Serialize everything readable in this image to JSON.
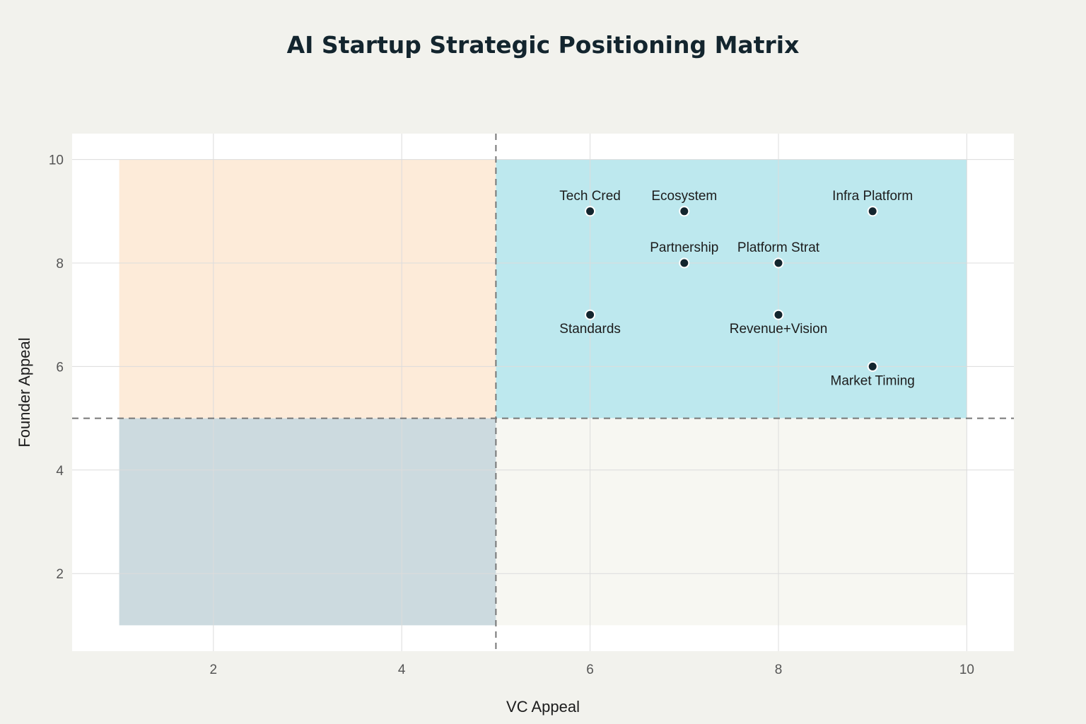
{
  "chart_data": {
    "type": "scatter",
    "title": "AI Startup Strategic Positioning Matrix",
    "xlabel": "VC Appeal",
    "ylabel": "Founder Appeal",
    "xlim": [
      0.5,
      10.5
    ],
    "ylim": [
      0.5,
      10.5
    ],
    "xticks": [
      2,
      4,
      6,
      8,
      10
    ],
    "yticks": [
      2,
      4,
      6,
      8,
      10
    ],
    "grid": true,
    "reference_lines": {
      "x": 5,
      "y": 5
    },
    "quadrants": [
      {
        "name": "top-left",
        "x": [
          1,
          5
        ],
        "y": [
          5,
          10
        ],
        "color": "#fdebd9"
      },
      {
        "name": "top-right",
        "x": [
          5,
          10
        ],
        "y": [
          5,
          10
        ],
        "color": "#bde8ee"
      },
      {
        "name": "bottom-left",
        "x": [
          1,
          5
        ],
        "y": [
          1,
          5
        ],
        "color": "#ccdadf"
      },
      {
        "name": "bottom-right",
        "x": [
          5,
          10
        ],
        "y": [
          1,
          5
        ],
        "color": "#f7f7f2"
      }
    ],
    "points": [
      {
        "label": "Tech Cred",
        "x": 6,
        "y": 9,
        "label_pos": "above"
      },
      {
        "label": "Ecosystem",
        "x": 7,
        "y": 9,
        "label_pos": "above"
      },
      {
        "label": "Infra Platform",
        "x": 9,
        "y": 9,
        "label_pos": "above"
      },
      {
        "label": "Partnership",
        "x": 7,
        "y": 8,
        "label_pos": "above"
      },
      {
        "label": "Platform Strat",
        "x": 8,
        "y": 8,
        "label_pos": "above"
      },
      {
        "label": "Standards",
        "x": 6,
        "y": 7,
        "label_pos": "below"
      },
      {
        "label": "Revenue+Vision",
        "x": 8,
        "y": 7,
        "label_pos": "below"
      },
      {
        "label": "Market Timing",
        "x": 9,
        "y": 6,
        "label_pos": "below"
      }
    ],
    "colors": {
      "background": "#f2f2ed",
      "plot_background": "#ffffff",
      "grid": "#dcdcdc",
      "reference_line": "#777777",
      "marker_fill": "#13252e",
      "marker_stroke": "#ffffff"
    }
  }
}
